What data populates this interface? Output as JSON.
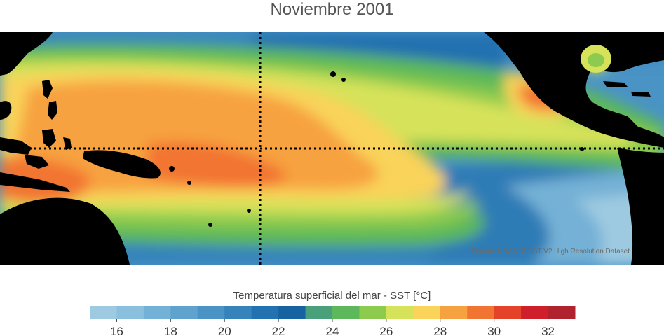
{
  "title": "Noviembre 2001",
  "source_note": "Fuente: NOAA OI SST V2 High Resolution Dataset",
  "colorbar": {
    "label": "Temperatura superficial del mar - SST  [°C]",
    "min": 15,
    "max": 33,
    "step": 1,
    "ticks": [
      16,
      18,
      20,
      22,
      24,
      26,
      28,
      30,
      32
    ],
    "colors": [
      "#9ecae1",
      "#8abfdd",
      "#74b1d6",
      "#5fa2ce",
      "#4a93c5",
      "#3683bb",
      "#2271b0",
      "#1762a0",
      "#4aa07a",
      "#5cb85a",
      "#8ccb4e",
      "#d6e25a",
      "#f9d35a",
      "#f7a241",
      "#f27432",
      "#e4432a",
      "#cf1f2b",
      "#b0222e"
    ]
  },
  "map": {
    "region": "Tropical Pacific",
    "equator_line": "dotted",
    "dateline": "dotted"
  }
}
